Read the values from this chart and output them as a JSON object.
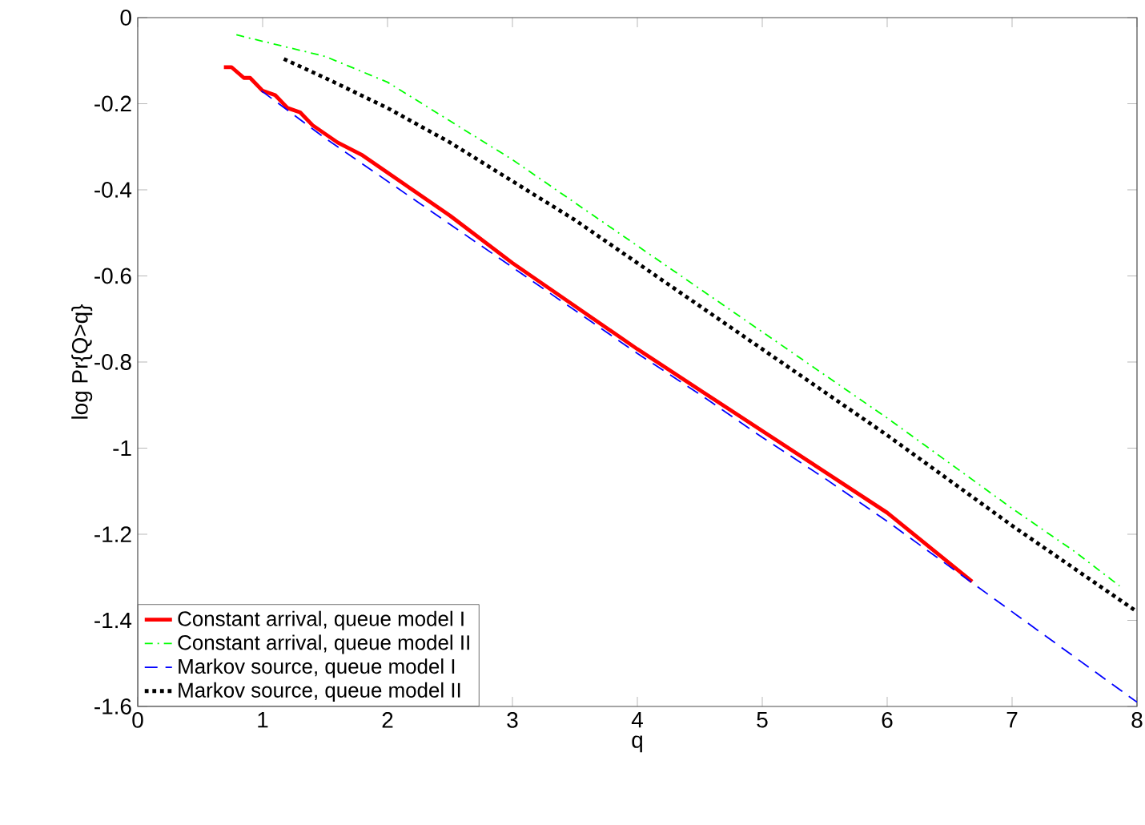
{
  "chart_data": {
    "type": "line",
    "xlabel": "q",
    "ylabel": "log Pr{Q>q}",
    "xlim": [
      0,
      8
    ],
    "ylim": [
      -1.6,
      0
    ],
    "xticks": [
      0,
      1,
      2,
      3,
      4,
      5,
      6,
      7,
      8
    ],
    "yticks": [
      -1.6,
      -1.4,
      -1.2,
      -1,
      -0.8,
      -0.6,
      -0.4,
      -0.2,
      0
    ],
    "grid": false,
    "legend": "bottom left",
    "series": [
      {
        "name": "Constant arrival, queue model I",
        "color": "#ff0000",
        "line_style": "solid",
        "x": [
          0.69,
          0.75,
          0.85,
          0.9,
          1.0,
          1.1,
          1.2,
          1.3,
          1.4,
          1.5,
          1.6,
          1.8,
          2.0,
          2.2,
          2.5,
          3.0,
          3.5,
          4.0,
          4.5,
          5.0,
          5.5,
          6.0,
          6.68
        ],
        "values": [
          -0.115,
          -0.115,
          -0.14,
          -0.14,
          -0.17,
          -0.18,
          -0.21,
          -0.22,
          -0.25,
          -0.27,
          -0.29,
          -0.32,
          -0.36,
          -0.4,
          -0.46,
          -0.57,
          -0.67,
          -0.77,
          -0.865,
          -0.96,
          -1.055,
          -1.15,
          -1.31
        ]
      },
      {
        "name": "Constant arrival, queue model II",
        "color": "#00ff00",
        "line_style": "dashdot",
        "x": [
          0.79,
          1.0,
          1.5,
          2.0,
          2.5,
          3.0,
          3.5,
          4.0,
          4.5,
          5.0,
          5.5,
          6.0,
          6.5,
          7.0,
          7.5,
          7.86
        ],
        "values": [
          -0.04,
          -0.055,
          -0.09,
          -0.15,
          -0.24,
          -0.33,
          -0.43,
          -0.53,
          -0.63,
          -0.73,
          -0.83,
          -0.93,
          -1.035,
          -1.14,
          -1.24,
          -1.32
        ]
      },
      {
        "name": "Markov source, queue model I",
        "color": "#0000ff",
        "line_style": "dashed",
        "x": [
          0.99,
          1.5,
          2.0,
          2.5,
          3.0,
          3.5,
          4.0,
          4.5,
          5.0,
          5.5,
          6.0,
          6.5,
          7.0,
          7.5,
          8.0
        ],
        "values": [
          -0.17,
          -0.28,
          -0.38,
          -0.48,
          -0.58,
          -0.68,
          -0.78,
          -0.875,
          -0.975,
          -1.07,
          -1.17,
          -1.275,
          -1.38,
          -1.485,
          -1.59
        ]
      },
      {
        "name": "Markov source, queue model II",
        "color": "#000000",
        "line_style": "dotted",
        "x": [
          1.17,
          1.5,
          2.0,
          2.5,
          3.0,
          3.5,
          4.0,
          4.5,
          5.0,
          5.5,
          6.0,
          6.5,
          7.0,
          7.5,
          8.0
        ],
        "values": [
          -0.096,
          -0.14,
          -0.21,
          -0.29,
          -0.38,
          -0.47,
          -0.57,
          -0.67,
          -0.77,
          -0.87,
          -0.97,
          -1.075,
          -1.18,
          -1.28,
          -1.38
        ]
      }
    ]
  }
}
